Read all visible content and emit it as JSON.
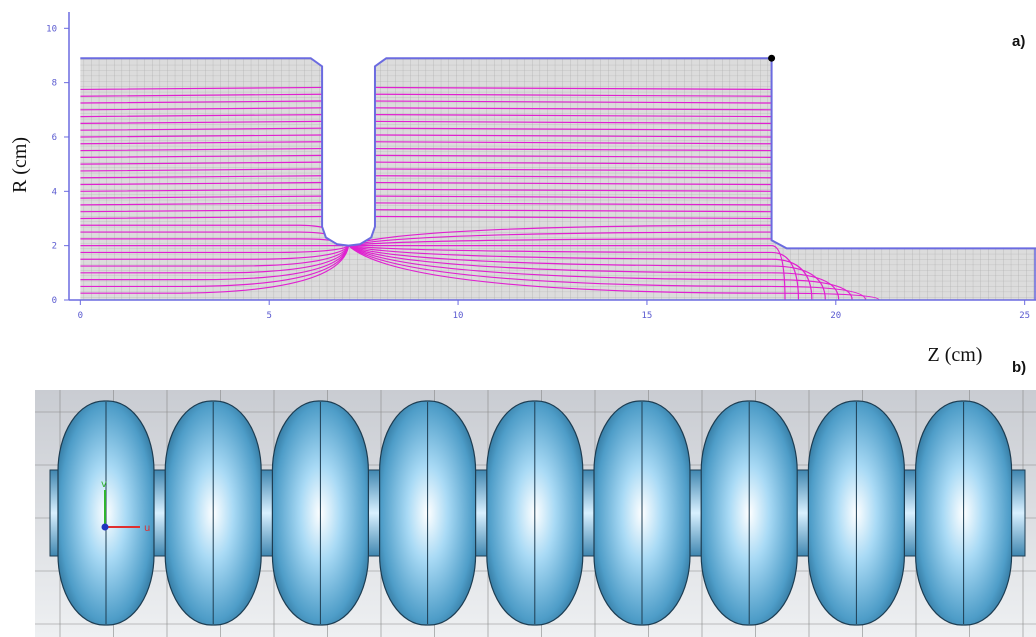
{
  "chart_data": {
    "type": "line",
    "color": "#6b6be0",
    "x": [
      0,
      6.1,
      6.4,
      6.4,
      6.5,
      6.8,
      7.1,
      7.4,
      7.7,
      7.8,
      7.8,
      8.1,
      18.3,
      18.3,
      18.7,
      25.3
    ],
    "values": [
      8.9,
      8.9,
      8.6,
      2.7,
      2.3,
      2.05,
      2.0,
      2.05,
      2.3,
      2.7,
      8.6,
      8.9,
      8.9,
      2.2,
      1.9,
      1.9
    ],
    "xlim": [
      -0.3,
      25.3
    ],
    "ylim": [
      0,
      10.6
    ],
    "xticks": [
      0,
      5,
      10,
      15,
      20,
      25
    ],
    "yticks": [
      0,
      2,
      4,
      6,
      8,
      10
    ],
    "xlabel": "Z (cm)",
    "ylabel": "R (cm)",
    "panel_label": "a)"
  },
  "panel_b": {
    "label": "b)",
    "axis_v": "v",
    "axis_u": "u"
  }
}
